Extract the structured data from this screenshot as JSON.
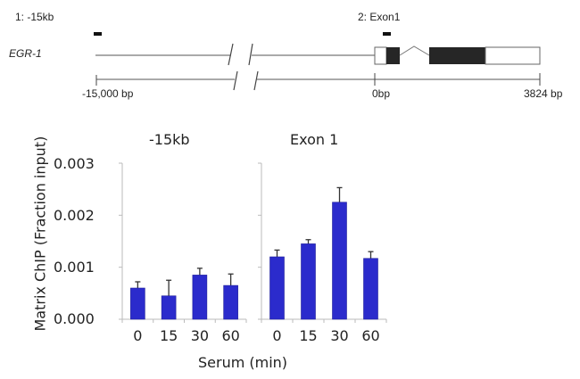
{
  "gene_map": {
    "gene_label": "EGR-1",
    "amplicon_1_label": "1: -15kb",
    "amplicon_2_label": "2: Exon1",
    "scale_start_label": "-15,000  bp",
    "scale_zero_label": "0bp",
    "scale_end_label": "3824 bp"
  },
  "colors": {
    "bar_fill": "#2b2bcc",
    "axis": "#bbbbbb",
    "error_bar": "#333333",
    "exon_fill": "#262626"
  },
  "chart_data": {
    "type": "bar",
    "ylabel": "Matrix ChIP (Fraction input)",
    "xlabel": "Serum (min)",
    "ylim": [
      0,
      0.003
    ],
    "yticks": [
      "0.000",
      "0.001",
      "0.002",
      "0.003"
    ],
    "grid": false,
    "panels": [
      {
        "title": "-15kb",
        "categories": [
          "0",
          "15",
          "30",
          "60"
        ],
        "values": [
          0.0006,
          0.00045,
          0.00085,
          0.00065
        ],
        "errors": [
          0.00012,
          0.0003,
          0.00013,
          0.00022
        ]
      },
      {
        "title": "Exon 1",
        "categories": [
          "0",
          "15",
          "30",
          "60"
        ],
        "values": [
          0.0012,
          0.00145,
          0.00225,
          0.00117
        ],
        "errors": [
          0.00013,
          8e-05,
          0.00028,
          0.00013
        ]
      }
    ]
  }
}
